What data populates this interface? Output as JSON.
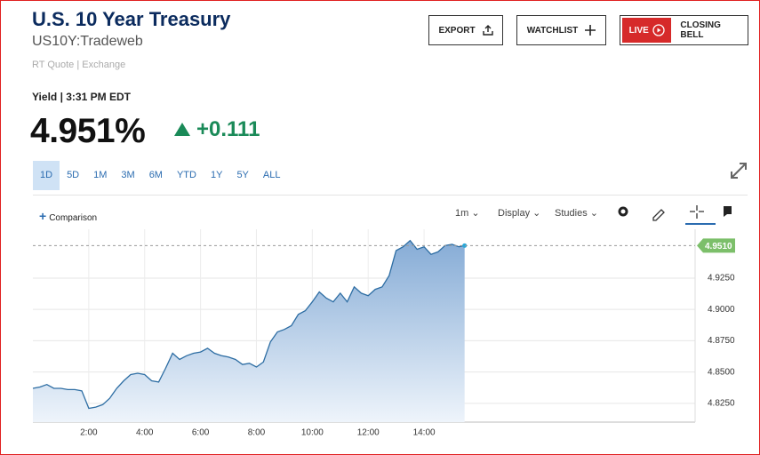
{
  "header": {
    "title": "U.S. 10 Year Treasury",
    "symbol": "US10Y:Tradeweb",
    "source": "RT Quote | Exchange",
    "quote_time": "Yield | 3:31 PM EDT",
    "price": "4.951%",
    "change": "+0.111"
  },
  "buttons": {
    "export": "EXPORT",
    "watchlist": "WATCHLIST",
    "live": "LIVE",
    "closing_bell": "CLOSING BELL"
  },
  "ranges": [
    "1D",
    "5D",
    "1M",
    "3M",
    "6M",
    "YTD",
    "1Y",
    "5Y",
    "ALL"
  ],
  "toolbar": {
    "comparison": "Comparison",
    "interval": "1m",
    "display": "Display",
    "studies": "Studies"
  },
  "chart_data": {
    "type": "area",
    "color": "#2d6da3",
    "x": [
      0,
      0.25,
      0.5,
      0.75,
      1.0,
      1.25,
      1.5,
      1.75,
      2.0,
      2.25,
      2.5,
      2.75,
      3.0,
      3.25,
      3.5,
      3.75,
      4.0,
      4.25,
      4.5,
      4.75,
      5.0,
      5.25,
      5.5,
      5.75,
      6.0,
      6.25,
      6.5,
      6.75,
      7.0,
      7.25,
      7.5,
      7.75,
      8.0,
      8.25,
      8.5,
      8.75,
      9.0,
      9.25,
      9.5,
      9.75,
      10.0,
      10.25,
      10.5,
      10.75,
      11.0,
      11.25,
      11.5,
      11.75,
      12.0,
      12.25,
      12.5,
      12.75,
      13.0,
      13.25,
      13.5,
      13.75,
      14.0,
      14.25,
      14.5,
      14.75,
      15.0,
      15.25,
      15.45
    ],
    "values": [
      4.837,
      4.838,
      4.84,
      4.837,
      4.837,
      4.836,
      4.836,
      4.835,
      4.821,
      4.822,
      4.824,
      4.829,
      4.837,
      4.843,
      4.848,
      4.849,
      4.848,
      4.843,
      4.842,
      4.853,
      4.865,
      4.86,
      4.863,
      4.865,
      4.866,
      4.869,
      4.865,
      4.863,
      4.862,
      4.86,
      4.856,
      4.857,
      4.854,
      4.858,
      4.874,
      4.882,
      4.884,
      4.887,
      4.896,
      4.899,
      4.906,
      4.914,
      4.909,
      4.906,
      4.913,
      4.906,
      4.918,
      4.913,
      4.911,
      4.916,
      4.918,
      4.927,
      4.947,
      4.95,
      4.955,
      4.948,
      4.95,
      4.944,
      4.946,
      4.951,
      4.952,
      4.95,
      4.951
    ],
    "xlim": [
      0,
      23.7
    ],
    "xticks": [
      {
        "value": 2,
        "label": "2:00"
      },
      {
        "value": 4,
        "label": "4:00"
      },
      {
        "value": 6,
        "label": "6:00"
      },
      {
        "value": 8,
        "label": "8:00"
      },
      {
        "value": 10,
        "label": "10:00"
      },
      {
        "value": 12,
        "label": "12:00"
      },
      {
        "value": 14,
        "label": "14:00"
      }
    ],
    "ylim": [
      4.81,
      4.964
    ],
    "yticks": [
      {
        "value": 4.825,
        "label": "4.8250"
      },
      {
        "value": 4.85,
        "label": "4.8500"
      },
      {
        "value": 4.875,
        "label": "4.8750"
      },
      {
        "value": 4.9,
        "label": "4.9000"
      },
      {
        "value": 4.925,
        "label": "4.9250"
      }
    ],
    "last_value": 4.951,
    "last_label": "4.9510",
    "last_color": "#7cbf6a",
    "grid": true
  }
}
